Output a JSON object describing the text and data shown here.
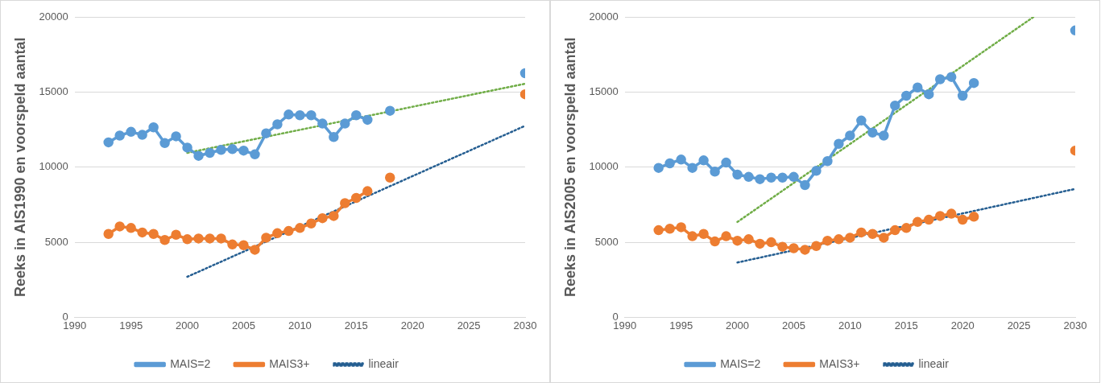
{
  "chart_data": [
    {
      "type": "line",
      "ylabel": "Reeks in AIS1990 en voorspeld aantal",
      "xlim": [
        1990,
        2030
      ],
      "xticks": [
        1990,
        1995,
        2000,
        2005,
        2010,
        2015,
        2020,
        2025,
        2030
      ],
      "ylim": [
        0,
        20000
      ],
      "yticks": [
        0,
        5000,
        10000,
        15000,
        20000
      ],
      "grid": "y",
      "legend": "bottom",
      "marker": "circle",
      "series": [
        {
          "name": "MAIS=2",
          "color": "#5b9bd5",
          "x": [
            1993,
            1994,
            1995,
            1996,
            1997,
            1998,
            1999,
            2000,
            2001,
            2002,
            2003,
            2004,
            2005,
            2006,
            2007,
            2008,
            2009,
            2010,
            2011,
            2012,
            2013,
            2014,
            2015,
            2016,
            2017,
            2018,
            2019,
            2030
          ],
          "values": [
            11650,
            12100,
            12350,
            12150,
            12650,
            11600,
            12050,
            11300,
            10750,
            10950,
            11150,
            11200,
            11100,
            10850,
            12250,
            12850,
            13500,
            13450,
            13450,
            12900,
            12000,
            12900,
            13450,
            13150,
            null,
            13750,
            null,
            16250
          ]
        },
        {
          "name": "MAIS3+",
          "color": "#ed7d31",
          "x": [
            1993,
            1994,
            1995,
            1996,
            1997,
            1998,
            1999,
            2000,
            2001,
            2002,
            2003,
            2004,
            2005,
            2006,
            2007,
            2008,
            2009,
            2010,
            2011,
            2012,
            2013,
            2014,
            2015,
            2016,
            2017,
            2018,
            2019,
            2030
          ],
          "values": [
            5550,
            6050,
            5950,
            5650,
            5550,
            5150,
            5500,
            5200,
            5250,
            5250,
            5250,
            4850,
            4800,
            4500,
            5300,
            5600,
            5750,
            5950,
            6250,
            6600,
            6750,
            7600,
            7950,
            8400,
            null,
            9300,
            null,
            14850
          ]
        },
        {
          "name": "lineair",
          "color": "#255e91",
          "line_style": "dotted",
          "marker": "none",
          "x": [
            2000,
            2030
          ],
          "values": [
            2700,
            12750
          ]
        },
        {
          "color": "#70ad47",
          "line_style": "dotted",
          "marker": "none",
          "x": [
            2000,
            2030
          ],
          "values": [
            10950,
            15550
          ]
        }
      ]
    },
    {
      "type": "line",
      "ylabel": "Reeks in AIS2005 en voorspeld aantal",
      "xlim": [
        1990,
        2030
      ],
      "xticks": [
        1990,
        1995,
        2000,
        2005,
        2010,
        2015,
        2020,
        2025,
        2030
      ],
      "ylim": [
        0,
        20000
      ],
      "yticks": [
        0,
        5000,
        10000,
        15000,
        20000
      ],
      "grid": "y",
      "legend": "bottom",
      "marker": "circle",
      "series": [
        {
          "name": "MAIS=2",
          "color": "#5b9bd5",
          "x": [
            1993,
            1994,
            1995,
            1996,
            1997,
            1998,
            1999,
            2000,
            2001,
            2002,
            2003,
            2004,
            2005,
            2006,
            2007,
            2008,
            2009,
            2010,
            2011,
            2012,
            2013,
            2014,
            2015,
            2016,
            2017,
            2018,
            2019,
            2020,
            2021,
            2022,
            2030
          ],
          "values": [
            9950,
            10250,
            10500,
            9950,
            10450,
            9700,
            10300,
            9500,
            9350,
            9200,
            9300,
            9300,
            9350,
            8800,
            9750,
            10400,
            11550,
            12100,
            13100,
            12300,
            12100,
            14100,
            14750,
            15300,
            14850,
            15850,
            16000,
            14750,
            15600,
            null,
            19100
          ]
        },
        {
          "name": "MAIS3+",
          "color": "#ed7d31",
          "x": [
            1993,
            1994,
            1995,
            1996,
            1997,
            1998,
            1999,
            2000,
            2001,
            2002,
            2003,
            2004,
            2005,
            2006,
            2007,
            2008,
            2009,
            2010,
            2011,
            2012,
            2013,
            2014,
            2015,
            2016,
            2017,
            2018,
            2019,
            2020,
            2021,
            2022,
            2030
          ],
          "values": [
            5800,
            5900,
            6000,
            5400,
            5550,
            5050,
            5400,
            5100,
            5200,
            4900,
            5000,
            4700,
            4600,
            4500,
            4750,
            5100,
            5200,
            5300,
            5650,
            5550,
            5300,
            5800,
            5950,
            6350,
            6500,
            6750,
            6900,
            6500,
            6700,
            null,
            11100
          ]
        },
        {
          "name": "lineair",
          "color": "#255e91",
          "line_style": "dotted",
          "marker": "none",
          "x": [
            2000,
            2030
          ],
          "values": [
            3650,
            8550
          ]
        },
        {
          "color": "#70ad47",
          "line_style": "dotted",
          "marker": "none",
          "x": [
            2000,
            2026.3
          ],
          "values": [
            6350,
            20000
          ]
        }
      ]
    }
  ]
}
